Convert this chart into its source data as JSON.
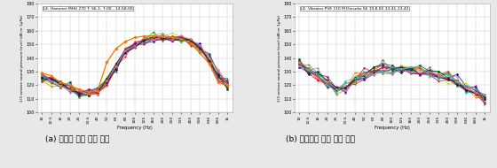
{
  "title_left": "LE: Hammer MHU 270 T: S6-1: 7:00 - 14:58:00",
  "title_right": "LE: Vibrator PVE 110 M Dieseko S6 19.8.05 13:41-13:42",
  "xlabel": "Frequency (Hz)",
  "ylabel": "1/3 octave sound pressure level (dB re 1μPa)",
  "caption_left": "(a) 항타에 의한 소음 특성",
  "caption_right": "(b) 진동기에 의한 소음 특성",
  "ylim": [
    100,
    180
  ],
  "yticks": [
    100,
    110,
    120,
    130,
    140,
    150,
    160,
    170,
    180
  ],
  "bg_color": "#e8e8e8",
  "plot_bg": "#ffffff",
  "grid_color": "#cccccc",
  "freq_labels": [
    "10",
    "12.5",
    "16",
    "20",
    "25",
    "31.5",
    "40",
    "50",
    "63",
    "80",
    "100",
    "125",
    "160",
    "200",
    "250",
    "315",
    "400",
    "500",
    "630",
    "800",
    "1k"
  ],
  "hammer_base": [
    125,
    123,
    121,
    118,
    115,
    114,
    116,
    122,
    134,
    145,
    150,
    153,
    155,
    155,
    155,
    154,
    152,
    147,
    140,
    126,
    121
  ],
  "hammer_orange": [
    129,
    127,
    122,
    120,
    117,
    115,
    116,
    137,
    147,
    152,
    155,
    156,
    156,
    156,
    155,
    154,
    151,
    144,
    136,
    122,
    120
  ],
  "vibrator_base": [
    137,
    132,
    127,
    122,
    117,
    118,
    124,
    128,
    130,
    132,
    132,
    132,
    131,
    130,
    130,
    128,
    126,
    122,
    118,
    114,
    110
  ],
  "hammer_colors": [
    "#999999",
    "#777777",
    "#009900",
    "#0000bb",
    "#bb0000",
    "#ee7700",
    "#00aaaa",
    "#aa00aa",
    "#cccc00",
    "#dd2222",
    "#660099",
    "#004400",
    "#003366",
    "#ff6699"
  ],
  "vibrator_colors": [
    "#999999",
    "#777777",
    "#009900",
    "#0000bb",
    "#bb0000",
    "#ee7700",
    "#00aaaa",
    "#aa00aa",
    "#cccc00",
    "#dd2222",
    "#660099",
    "#004400",
    "#003366",
    "#ff6699",
    "#33cc99"
  ],
  "n_hammer": 14,
  "n_vibrator": 15
}
